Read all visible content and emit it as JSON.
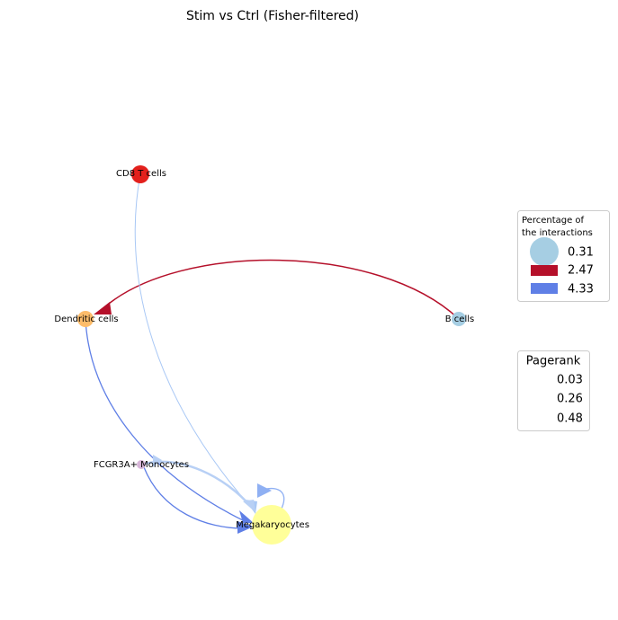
{
  "title": "Stim vs Ctrl (Fisher-filtered)",
  "nodes": [
    {
      "label": "CD8 T cells"
    },
    {
      "label": "Dendritic cells"
    },
    {
      "label": "B cells"
    },
    {
      "label": "FCGR3A+ Monocytes"
    },
    {
      "label": "Megakaryocytes"
    }
  ],
  "legend_interactions": {
    "title": [
      "Percentage of",
      "the interactions"
    ],
    "entries": [
      "0.31",
      "2.47",
      "4.33"
    ]
  },
  "legend_pagerank": {
    "title": "Pagerank",
    "entries": [
      "0.03",
      "0.26",
      "0.48"
    ]
  }
}
